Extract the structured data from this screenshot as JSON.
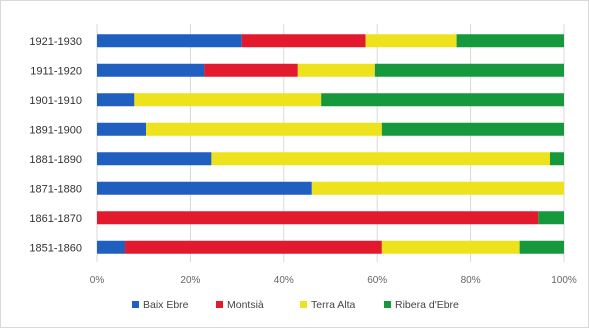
{
  "chart_data": {
    "type": "bar",
    "orientation": "horizontal",
    "stacked": "percent",
    "categories": [
      "1921-1930",
      "1911-1920",
      "1901-1910",
      "1891-1900",
      "1881-1890",
      "1871-1880",
      "1861-1870",
      "1851-1860"
    ],
    "series": [
      {
        "name": "Baix Ebre",
        "color": "#1f5fbf",
        "values": [
          31,
          23,
          8,
          10.5,
          24.5,
          46,
          0,
          6
        ]
      },
      {
        "name": "Montsià",
        "color": "#e31a2e",
        "values": [
          26.5,
          20,
          0,
          0,
          0,
          0,
          94.5,
          55
        ]
      },
      {
        "name": "Terra Alta",
        "color": "#ede21b",
        "values": [
          19.5,
          16.5,
          40,
          50.5,
          72.5,
          54,
          0,
          29.5
        ]
      },
      {
        "name": "Ribera d'Ebre",
        "color": "#16993c",
        "values": [
          23,
          40.5,
          52,
          39,
          3,
          0,
          5.5,
          9.5
        ]
      }
    ],
    "x_ticks": [
      "0%",
      "20%",
      "40%",
      "60%",
      "80%",
      "100%"
    ],
    "xlim": [
      0,
      100
    ],
    "grid": "vertical",
    "legend_position": "bottom"
  }
}
